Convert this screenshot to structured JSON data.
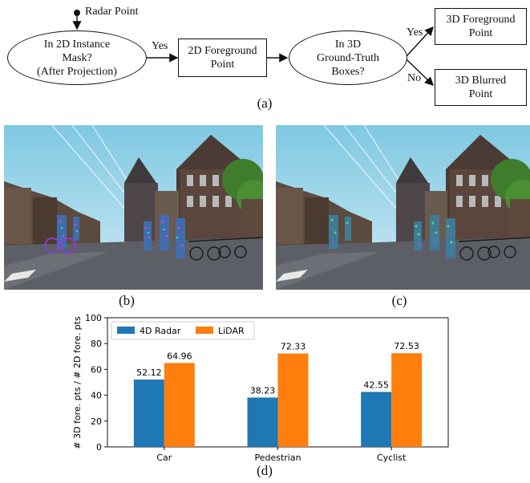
{
  "flowchart": {
    "start_label": "Radar Point",
    "decision1": [
      "In 2D Instance",
      "Mask?",
      "(After Projection)"
    ],
    "yes1": "Yes",
    "process1": [
      "2D Foreground",
      "Point"
    ],
    "decision2": [
      "In 3D",
      "Ground-Truth",
      "Boxes?"
    ],
    "yes2": "Yes",
    "no2": "No",
    "out_yes": [
      "3D Foreground",
      "Point"
    ],
    "out_no": [
      "3D Blurred",
      "Point"
    ]
  },
  "captions": {
    "a": "(a)",
    "b": "(b)",
    "c": "(c)",
    "d": "(d)"
  },
  "chart_data": {
    "type": "bar",
    "categories": [
      "Car",
      "Pedestrian",
      "Cyclist"
    ],
    "series": [
      {
        "name": "4D Radar",
        "values": [
          52.12,
          38.23,
          42.55
        ],
        "color": "#1f77b4"
      },
      {
        "name": "LiDAR",
        "values": [
          64.96,
          72.33,
          72.53
        ],
        "color": "#ff7f0e"
      }
    ],
    "value_labels": [
      [
        "52.12",
        "38.23",
        "42.55"
      ],
      [
        "64.96",
        "72.33",
        "72.53"
      ]
    ],
    "ylabel": "# 3D fore. pts / # 2D fore. pts",
    "xlabel": "",
    "ylim": [
      0,
      100
    ],
    "yticks": [
      "0",
      "20",
      "40",
      "60",
      "80",
      "100"
    ],
    "legend_position": "top-left",
    "grid": false
  }
}
